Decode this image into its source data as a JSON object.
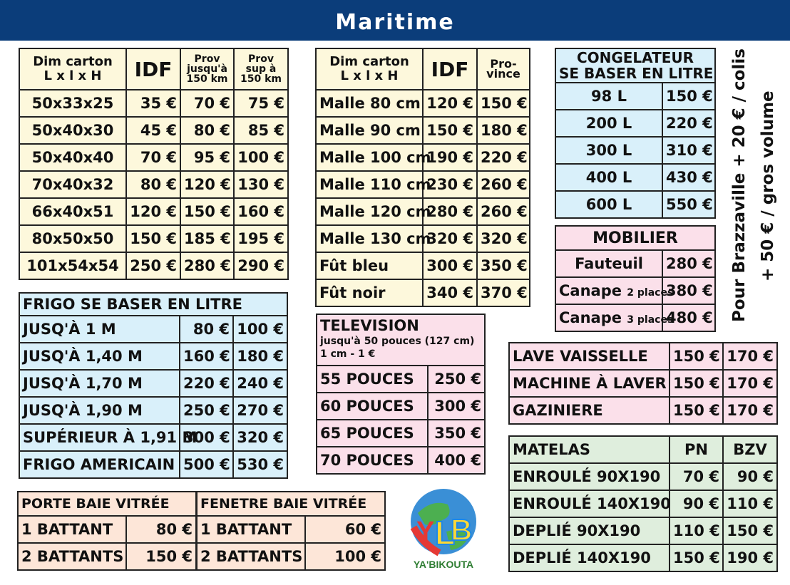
{
  "header": {
    "title": "Maritime"
  },
  "carton": {
    "head": {
      "dim": "Dim carton",
      "dim2": "L x l x H",
      "idf": "IDF",
      "prov1": "Prov jusqu'à 150 km",
      "prov2": "Prov sup à 150 km"
    },
    "rows": [
      {
        "size": "50x33x25",
        "idf": "35 €",
        "p1": "70 €",
        "p2": "75 €"
      },
      {
        "size": "50x40x30",
        "idf": "45 €",
        "p1": "80 €",
        "p2": "85 €"
      },
      {
        "size": "50x40x40",
        "idf": "70 €",
        "p1": "95 €",
        "p2": "100 €"
      },
      {
        "size": "70x40x32",
        "idf": "80 €",
        "p1": "120 €",
        "p2": "130 €"
      },
      {
        "size": "66x40x51",
        "idf": "120 €",
        "p1": "150 €",
        "p2": "160 €"
      },
      {
        "size": "80x50x50",
        "idf": "150 €",
        "p1": "185 €",
        "p2": "195 €"
      },
      {
        "size": "101x54x54",
        "idf": "250 €",
        "p1": "280 €",
        "p2": "290 €"
      }
    ]
  },
  "malle": {
    "head": {
      "dim": "Dim carton",
      "dim2": "L x l x H",
      "idf": "IDF",
      "prov": "Pro- vince"
    },
    "rows": [
      {
        "name": "Malle 80 cm",
        "idf": "120 €",
        "prov": "150 €"
      },
      {
        "name": "Malle 90 cm",
        "idf": "150 €",
        "prov": "180 €"
      },
      {
        "name": "Malle 100 cm",
        "idf": "190 €",
        "prov": "220 €"
      },
      {
        "name": "Malle 110 cm",
        "idf": "230 €",
        "prov": "260 €"
      },
      {
        "name": "Malle 120 cm",
        "idf": "280 €",
        "prov": "260 €"
      },
      {
        "name": "Malle 130 cm",
        "idf": "320 €",
        "prov": "320 €"
      },
      {
        "name": "Fût bleu",
        "idf": "300 €",
        "prov": "350 €"
      },
      {
        "name": "Fût noir",
        "idf": "340 €",
        "prov": "370 €"
      }
    ]
  },
  "congelateur": {
    "title1": "CONGELATEUR",
    "title2": "SE BASER EN LITRE",
    "rows": [
      {
        "size": "98 L",
        "price": "150 €"
      },
      {
        "size": "200 L",
        "price": "220 €"
      },
      {
        "size": "300 L",
        "price": "310 €"
      },
      {
        "size": "400 L",
        "price": "430 €"
      },
      {
        "size": "600 L",
        "price": "550 €"
      }
    ]
  },
  "mobilier": {
    "title": "MOBILIER",
    "rows": [
      {
        "name": "Fauteuil",
        "suffix": "",
        "price": "280 €"
      },
      {
        "name": "Canape",
        "suffix": "2 places",
        "price": "380 €"
      },
      {
        "name": "Canape",
        "suffix": "3 places",
        "price": "480 €"
      }
    ]
  },
  "side_note": {
    "line1": "Pour Brazzaville + 20 € / colis",
    "line2": "+ 50 € / gros volume"
  },
  "frigo": {
    "title": "FRIGO SE BASER EN LITRE",
    "rows": [
      {
        "name": "JUSQ'À 1 M",
        "a": "80 €",
        "b": "100 €"
      },
      {
        "name": "JUSQ'À 1,40 M",
        "a": "160 €",
        "b": "180 €"
      },
      {
        "name": "JUSQ'À 1,70 M",
        "a": "220 €",
        "b": "240 €"
      },
      {
        "name": "JUSQ'À 1,90 M",
        "a": "250 €",
        "b": "270 €"
      },
      {
        "name": "SUPÉRIEUR À 1,91 M",
        "a": "300 €",
        "b": "320 €"
      },
      {
        "name": "FRIGO AMERICAIN",
        "a": "500 €",
        "b": "530 €"
      }
    ]
  },
  "television": {
    "title": "TELEVISION",
    "note1": "jusqu'à 50 pouces (127 cm)",
    "note2": "1 cm - 1 €",
    "rows": [
      {
        "name": "55 POUCES",
        "price": "250 €"
      },
      {
        "name": "60 POUCES",
        "price": "300 €"
      },
      {
        "name": "65 POUCES",
        "price": "350 €"
      },
      {
        "name": "70 POUCES",
        "price": "400 €"
      }
    ]
  },
  "electro": {
    "rows": [
      {
        "name": "LAVE VAISSELLE",
        "a": "150 €",
        "b": "170 €"
      },
      {
        "name": "MACHINE À LAVER",
        "a": "150 €",
        "b": "170 €"
      },
      {
        "name": "GAZINIERE",
        "a": "150 €",
        "b": "170 €"
      }
    ]
  },
  "matelas": {
    "title": "MATELAS",
    "col_a": "PN",
    "col_b": "BZV",
    "rows": [
      {
        "name": "ENROULÉ 90X190",
        "a": "70 €",
        "b": "90 €"
      },
      {
        "name": "ENROULÉ 140X190",
        "a": "90 €",
        "b": "110 €"
      },
      {
        "name": "DEPLIÉ 90X190",
        "a": "110 €",
        "b": "150 €"
      },
      {
        "name": "DEPLIÉ 140X190",
        "a": "150 €",
        "b": "190 €"
      }
    ]
  },
  "porte": {
    "title": "PORTE BAIE VITRÉE",
    "rows": [
      {
        "name": "1 BATTANT",
        "price": "80 €"
      },
      {
        "name": "2 BATTANTS",
        "price": "150 €"
      }
    ]
  },
  "fenetre": {
    "title": "FENETRE BAIE VITRÉE",
    "rows": [
      {
        "name": "1 BATTANT",
        "price": "60 €"
      },
      {
        "name": "2 BATTANTS",
        "price": "100 €"
      }
    ]
  },
  "logo": {
    "letters": "YLB",
    "name": "YA'BIKOUTA"
  },
  "colors": {
    "header_bg": "#0b3d7a",
    "yellow": "#fdf8dc",
    "blue": "#d9f0fa",
    "pink": "#fbe0ea",
    "peach": "#fde6d8",
    "green": "#dfeedd"
  }
}
